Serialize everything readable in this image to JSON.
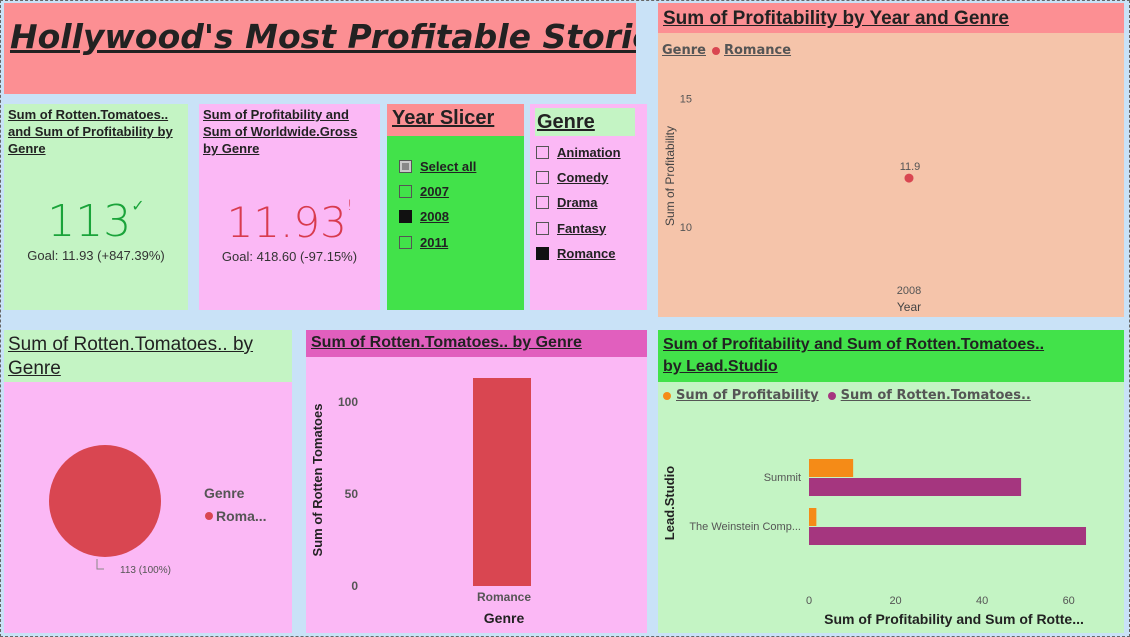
{
  "title": "Hollywood's Most Profitable Stories",
  "kpi1": {
    "title": "Sum of Rotten.Tomatoes.. and Sum of Profitability by Genre",
    "value": "113",
    "status_glyph": "✓",
    "goal": "Goal: 11.93 (+847.39%)",
    "color": "#1aa33a"
  },
  "kpi2": {
    "title": "Sum of Profitability and Sum of Worldwide.Gross by Genre",
    "value": "11.93",
    "status_glyph": "!",
    "goal": "Goal: 418.60 (-97.15%)",
    "color": "#d83b4e"
  },
  "year_slicer": {
    "title": "Year Slicer",
    "items": [
      {
        "label": "Select all",
        "state": "partial"
      },
      {
        "label": "2007",
        "state": "off"
      },
      {
        "label": "2008",
        "state": "on"
      },
      {
        "label": "2011",
        "state": "off"
      }
    ]
  },
  "genre_slicer": {
    "title": "Genre",
    "items": [
      {
        "label": "Animation",
        "state": "off"
      },
      {
        "label": "Comedy",
        "state": "off"
      },
      {
        "label": "Drama",
        "state": "off"
      },
      {
        "label": "Fantasy",
        "state": "off"
      },
      {
        "label": "Romance",
        "state": "on"
      }
    ]
  },
  "colors": {
    "romance": "#d94651",
    "profitability": "#f58b17",
    "rotten": "#a5367f",
    "title_bg": "#fc8f93",
    "green": "#42e24a",
    "light_green": "#c4f4c4",
    "pink": "#fbb8f5",
    "peach": "#f5c4aa"
  },
  "scatter": {
    "title": "Sum of Profitability by Year and Genre",
    "legend_title": "Genre",
    "legend_item": "Romance"
  },
  "pie": {
    "title": "Sum of Rotten.Tomatoes.. by Genre",
    "legend_title": "Genre",
    "legend_item": "Roma...",
    "slice_label": "113 (100%)"
  },
  "bar": {
    "title": "Sum of Rotten.Tomatoes.. by Genre"
  },
  "hbar": {
    "title_line1": "Sum of Profitability and Sum of Rotten.Tomatoes..",
    "title_line2": "by Lead.Studio",
    "legend": [
      "Sum of Profitability",
      "Sum of Rotten.Tomatoes.."
    ]
  },
  "chart_data": [
    {
      "type": "scatter",
      "title": "Sum of Profitability by Year and Genre",
      "xlabel": "Year",
      "ylabel": "Sum of Profitability",
      "x_ticks": [
        "2008"
      ],
      "y_ticks": [
        10,
        15
      ],
      "ylim": [
        8,
        16
      ],
      "series": [
        {
          "name": "Romance",
          "points": [
            {
              "x": "2008",
              "y": 11.9,
              "label": "11.9"
            }
          ]
        }
      ]
    },
    {
      "type": "pie",
      "title": "Sum of Rotten.Tomatoes.. by Genre",
      "categories": [
        "Roma..."
      ],
      "values": [
        113
      ],
      "labels": [
        "113 (100%)"
      ]
    },
    {
      "type": "bar",
      "title": "Sum of Rotten.Tomatoes.. by Genre",
      "categories": [
        "Romance"
      ],
      "values": [
        113
      ],
      "xlabel": "Genre",
      "ylabel": "Sum of Rotten Tomatoes",
      "y_ticks": [
        0,
        50,
        100
      ],
      "ylim": [
        0,
        113
      ]
    },
    {
      "type": "bar",
      "orientation": "horizontal",
      "title": "Sum of Profitability and Sum of Rotten.Tomatoes.. by Lead.Studio",
      "categories": [
        "Summit",
        "The Weinstein Comp..."
      ],
      "series": [
        {
          "name": "Sum of Profitability",
          "values": [
            10.2,
            1.7
          ]
        },
        {
          "name": "Sum of Rotten.Tomatoes..",
          "values": [
            49,
            64
          ]
        }
      ],
      "xlabel": "Sum of Profitability and Sum of Rotte...",
      "ylabel": "Lead.Studio",
      "x_ticks": [
        0,
        20,
        40,
        60
      ],
      "xlim": [
        0,
        67
      ]
    }
  ]
}
